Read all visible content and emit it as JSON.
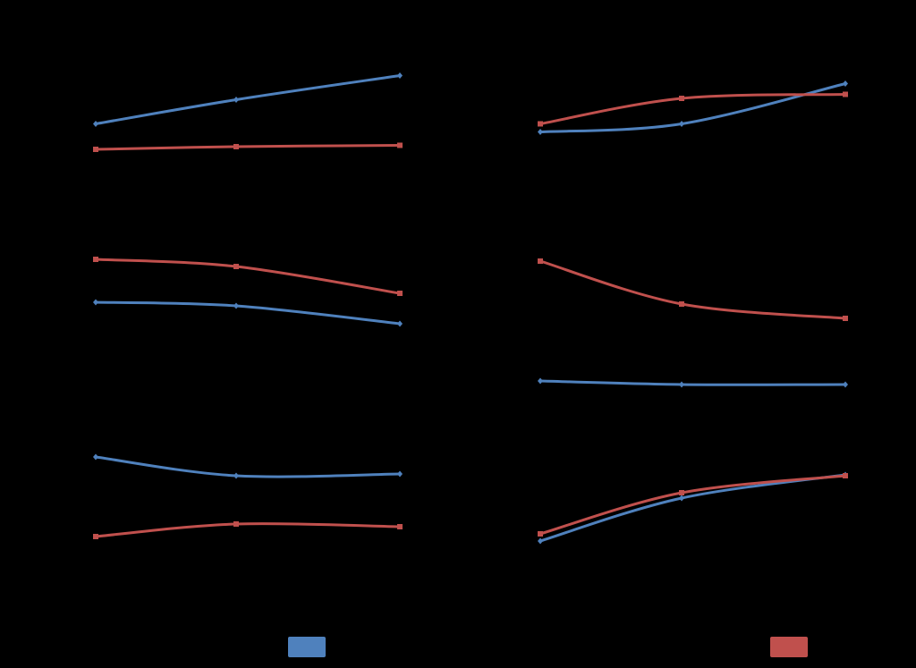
{
  "chart_data": [
    {
      "type": "line",
      "categories": [
        null,
        null,
        null
      ],
      "ylim": [
        0,
        100
      ],
      "series": [
        {
          "color": "#4f81bd",
          "values": [
            41,
            59,
            77
          ]
        },
        {
          "color": "#c0504d",
          "values": [
            22,
            24,
            25
          ]
        }
      ]
    },
    {
      "type": "line",
      "categories": [
        null,
        null,
        null
      ],
      "ylim": [
        0,
        100
      ],
      "series": [
        {
          "color": "#4f81bd",
          "values": [
            35,
            41,
            71
          ]
        },
        {
          "color": "#c0504d",
          "values": [
            41,
            60,
            63
          ]
        }
      ]
    },
    {
      "type": "line",
      "categories": [
        null,
        null,
        null
      ],
      "ylim": [
        0,
        100
      ],
      "series": [
        {
          "color": "#4f81bd",
          "values": [
            56,
            54,
            44
          ]
        },
        {
          "color": "#c0504d",
          "values": [
            80,
            76,
            61
          ]
        }
      ]
    },
    {
      "type": "line",
      "categories": [
        null,
        null,
        null
      ],
      "ylim": [
        0,
        100
      ],
      "series": [
        {
          "color": "#4f81bd",
          "values": [
            12,
            10,
            10
          ]
        },
        {
          "color": "#c0504d",
          "values": [
            79,
            55,
            47
          ]
        }
      ]
    },
    {
      "type": "line",
      "categories": [
        null,
        null,
        null
      ],
      "ylim": [
        0,
        100
      ],
      "series": [
        {
          "color": "#4f81bd",
          "values": [
            69.5,
            59,
            60
          ]
        },
        {
          "color": "#c0504d",
          "values": [
            25,
            32,
            30.5
          ]
        }
      ]
    },
    {
      "type": "line",
      "categories": [
        null,
        null,
        null
      ],
      "ylim": [
        0,
        100
      ],
      "series": [
        {
          "color": "#4f81bd",
          "values": [
            22.5,
            46.5,
            59.5
          ]
        },
        {
          "color": "#c0504d",
          "values": [
            26.5,
            49.5,
            59
          ]
        }
      ]
    }
  ]
}
